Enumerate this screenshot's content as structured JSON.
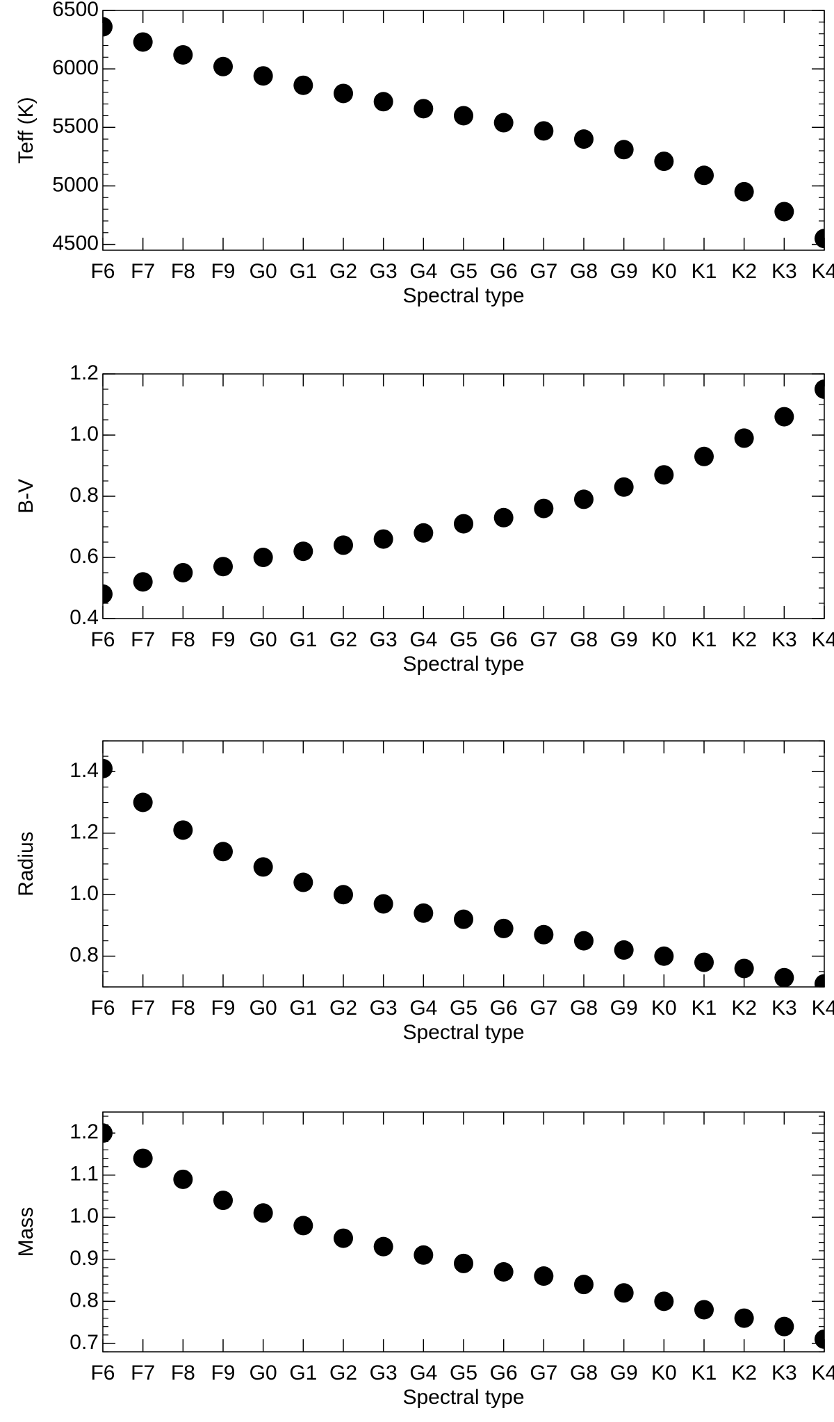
{
  "chart_data": [
    {
      "type": "scatter",
      "categories": [
        "F6",
        "F7",
        "F8",
        "F9",
        "G0",
        "G1",
        "G2",
        "G3",
        "G4",
        "G5",
        "G6",
        "G7",
        "G8",
        "G9",
        "K0",
        "K1",
        "K2",
        "K3",
        "K4"
      ],
      "values": [
        6360,
        6230,
        6120,
        6020,
        5940,
        5860,
        5790,
        5720,
        5660,
        5600,
        5540,
        5470,
        5400,
        5310,
        5210,
        5090,
        4950,
        4780,
        4550
      ],
      "title": "",
      "xlabel": "Spectral type",
      "ylabel": "Teff (K)",
      "ylim": [
        4450,
        6500
      ],
      "yticks": [
        4500,
        5000,
        5500,
        6000,
        6500
      ],
      "ytick_labels": [
        "4500",
        "5000",
        "5500",
        "6000",
        "6500"
      ],
      "minor_step": 100,
      "grid": false
    },
    {
      "type": "scatter",
      "categories": [
        "F6",
        "F7",
        "F8",
        "F9",
        "G0",
        "G1",
        "G2",
        "G3",
        "G4",
        "G5",
        "G6",
        "G7",
        "G8",
        "G9",
        "K0",
        "K1",
        "K2",
        "K3",
        "K4"
      ],
      "values": [
        0.48,
        0.52,
        0.55,
        0.57,
        0.6,
        0.62,
        0.64,
        0.66,
        0.68,
        0.71,
        0.73,
        0.76,
        0.79,
        0.83,
        0.87,
        0.93,
        0.99,
        1.06,
        1.15
      ],
      "title": "",
      "xlabel": "Spectral type",
      "ylabel": "B-V",
      "ylim": [
        0.4,
        1.2
      ],
      "yticks": [
        0.4,
        0.6,
        0.8,
        1.0,
        1.2
      ],
      "ytick_labels": [
        "0.4",
        "0.6",
        "0.8",
        "1.0",
        "1.2"
      ],
      "minor_step": 0.05,
      "grid": false
    },
    {
      "type": "scatter",
      "categories": [
        "F6",
        "F7",
        "F8",
        "F9",
        "G0",
        "G1",
        "G2",
        "G3",
        "G4",
        "G5",
        "G6",
        "G7",
        "G8",
        "G9",
        "K0",
        "K1",
        "K2",
        "K3",
        "K4"
      ],
      "values": [
        1.41,
        1.3,
        1.21,
        1.14,
        1.09,
        1.04,
        1.0,
        0.97,
        0.94,
        0.92,
        0.89,
        0.87,
        0.85,
        0.82,
        0.8,
        0.78,
        0.76,
        0.73,
        0.71
      ],
      "title": "",
      "xlabel": "Spectral type",
      "ylabel": "Radius",
      "ylim": [
        0.7,
        1.5
      ],
      "yticks": [
        0.8,
        1.0,
        1.2,
        1.4
      ],
      "ytick_labels": [
        "0.8",
        "1.0",
        "1.2",
        "1.4"
      ],
      "minor_step": 0.05,
      "grid": false
    },
    {
      "type": "scatter",
      "categories": [
        "F6",
        "F7",
        "F8",
        "F9",
        "G0",
        "G1",
        "G2",
        "G3",
        "G4",
        "G5",
        "G6",
        "G7",
        "G8",
        "G9",
        "K0",
        "K1",
        "K2",
        "K3",
        "K4"
      ],
      "values": [
        1.2,
        1.14,
        1.09,
        1.04,
        1.01,
        0.98,
        0.95,
        0.93,
        0.91,
        0.89,
        0.87,
        0.86,
        0.84,
        0.82,
        0.8,
        0.78,
        0.76,
        0.74,
        0.71
      ],
      "title": "",
      "xlabel": "Spectral type",
      "ylabel": "Mass",
      "ylim": [
        0.68,
        1.25
      ],
      "yticks": [
        0.7,
        0.8,
        0.9,
        1.0,
        1.1,
        1.2
      ],
      "ytick_labels": [
        "0.7",
        "0.8",
        "0.9",
        "1.0",
        "1.1",
        "1.2"
      ],
      "minor_step": 0.02,
      "grid": false
    }
  ]
}
